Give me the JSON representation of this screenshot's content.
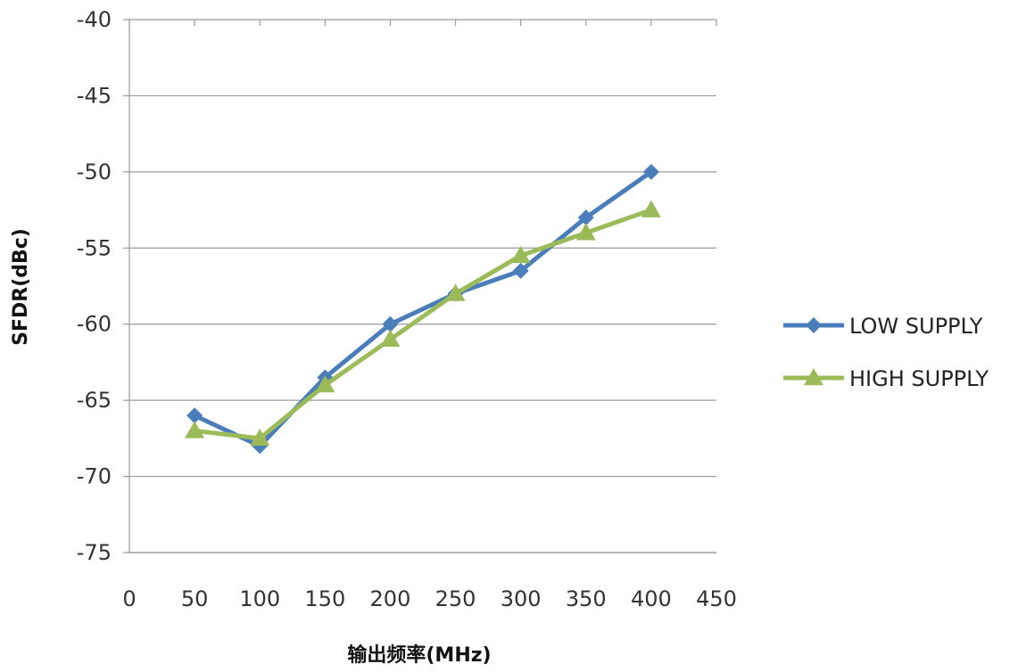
{
  "chart_data": {
    "type": "line",
    "title": "",
    "xlabel": "输出频率(MHz)",
    "ylabel": "SFDR(dBc)",
    "xlim": [
      0,
      450
    ],
    "ylim": [
      -75,
      -40
    ],
    "xticks": [
      0,
      50,
      100,
      150,
      200,
      250,
      300,
      350,
      400,
      450
    ],
    "yticks": [
      -40,
      -45,
      -50,
      -55,
      -60,
      -65,
      -70,
      -75
    ],
    "grid": "horizontal",
    "legend_position": "right",
    "x": [
      50,
      100,
      150,
      200,
      250,
      300,
      350,
      400
    ],
    "series": [
      {
        "name": "LOW SUPPLY",
        "color": "#4a7ebb",
        "marker": "diamond",
        "values": [
          -66,
          -68,
          -63.5,
          -60,
          -58,
          -56.5,
          -53,
          -50
        ]
      },
      {
        "name": "HIGH SUPPLY",
        "color": "#9bbb59",
        "marker": "triangle",
        "values": [
          -67,
          -67.5,
          -64,
          -61,
          -58,
          -55.5,
          -54,
          -52.5
        ]
      }
    ]
  }
}
